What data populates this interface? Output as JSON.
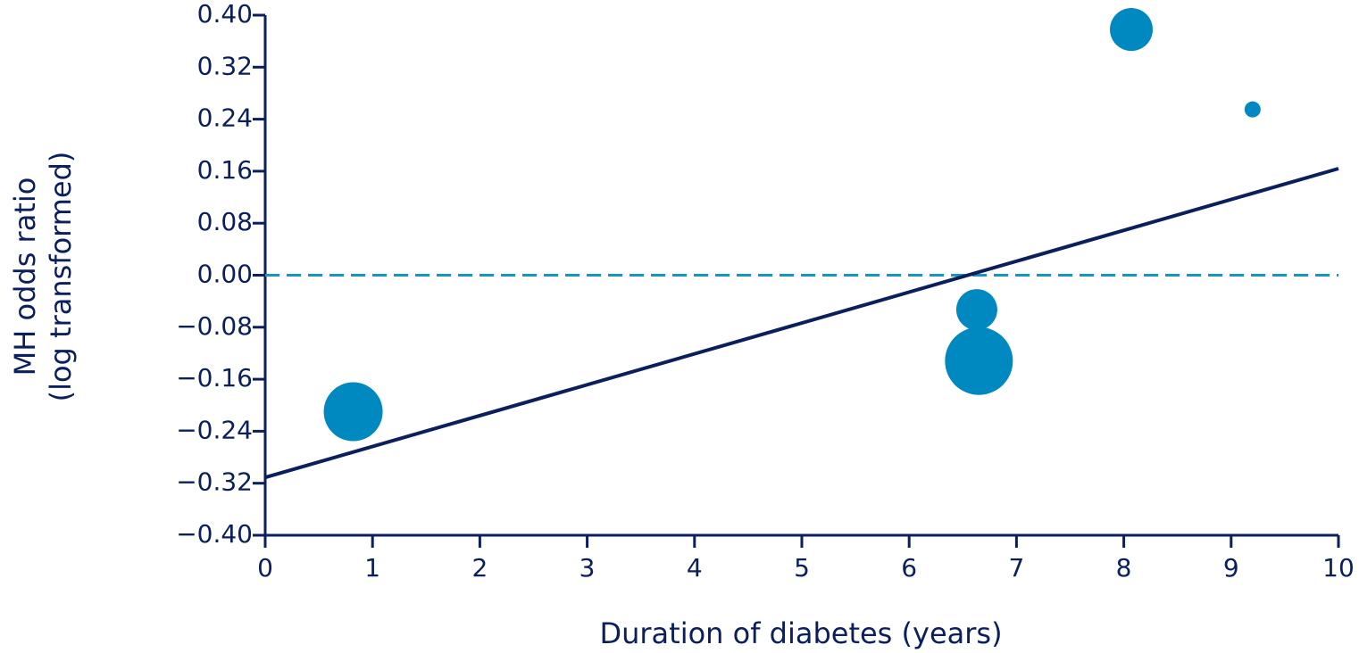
{
  "chart_data": {
    "type": "scatter",
    "xlabel": "Duration of diabetes (years)",
    "ylabel": [
      "MH odds ratio",
      "(log transformed)"
    ],
    "x": [
      0.82,
      6.63,
      6.65,
      8.07,
      9.2
    ],
    "values": [
      -0.21,
      -0.053,
      -0.132,
      0.378,
      0.255
    ],
    "sizes": [
      33,
      23,
      38,
      24,
      9
    ],
    "color": "#0088c0",
    "trend_line": {
      "x": [
        0,
        10
      ],
      "values": [
        -0.311,
        0.164
      ],
      "color": "#0a1f5c"
    },
    "reference_line": {
      "value": 0,
      "color": "#1a95c2",
      "style": "dashed"
    },
    "xlim": [
      0,
      10
    ],
    "xticks": [
      0,
      1,
      2,
      3,
      4,
      5,
      6,
      7,
      8,
      9,
      10
    ],
    "ylim": [
      -0.4,
      0.4
    ],
    "yticks": [
      {
        "value": -0.4,
        "label": "−0.40"
      },
      {
        "value": -0.32,
        "label": "−0.32"
      },
      {
        "value": -0.24,
        "label": "−0.24"
      },
      {
        "value": -0.16,
        "label": "−0.16"
      },
      {
        "value": -0.08,
        "label": "−0.08"
      },
      {
        "value": 0,
        "label": "0.00"
      },
      {
        "value": 0.08,
        "label": "0.08"
      },
      {
        "value": 0.16,
        "label": "0.16"
      },
      {
        "value": 0.24,
        "label": "0.24"
      },
      {
        "value": 0.32,
        "label": "0.32"
      },
      {
        "value": 0.4,
        "label": "0.40"
      }
    ],
    "grid": false
  }
}
